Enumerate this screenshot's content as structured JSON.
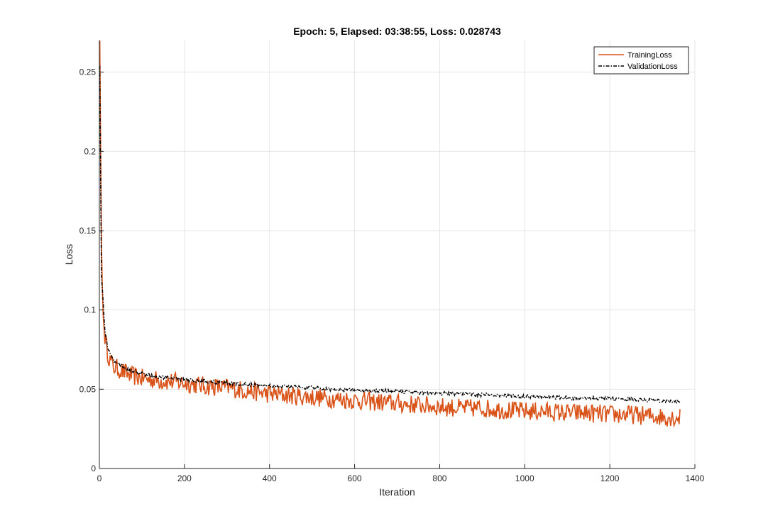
{
  "chart_data": {
    "type": "line",
    "title": "Epoch: 5, Elapsed: 03:38:55, Loss: 0.028743",
    "xlabel": "Iteration",
    "ylabel": "Loss",
    "xlim": [
      0,
      1400
    ],
    "ylim": [
      0,
      0.27
    ],
    "xticks": [
      0,
      200,
      400,
      600,
      800,
      1000,
      1200,
      1400
    ],
    "xtick_labels": [
      "0",
      "200",
      "400",
      "600",
      "800",
      "1000",
      "1200",
      "1400"
    ],
    "yticks": [
      0,
      0.05,
      0.1,
      0.15,
      0.2,
      0.25
    ],
    "ytick_labels": [
      "0",
      "0.05",
      "0.1",
      "0.15",
      "0.2",
      "0.25"
    ],
    "grid": true,
    "legend_position": "top-right",
    "series": [
      {
        "name": "TrainingLoss",
        "color": "#D95319",
        "line_style": "solid",
        "x": [
          1,
          3,
          5,
          8,
          12,
          18,
          25,
          35,
          50,
          70,
          100,
          130,
          160,
          200,
          250,
          300,
          350,
          400,
          450,
          500,
          550,
          600,
          650,
          700,
          750,
          800,
          850,
          900,
          950,
          1000,
          1050,
          1100,
          1150,
          1200,
          1250,
          1300,
          1366
        ],
        "y": [
          0.27,
          0.2,
          0.14,
          0.1,
          0.085,
          0.075,
          0.068,
          0.064,
          0.062,
          0.059,
          0.057,
          0.056,
          0.055,
          0.054,
          0.052,
          0.051,
          0.049,
          0.047,
          0.046,
          0.045,
          0.044,
          0.043,
          0.042,
          0.041,
          0.04,
          0.039,
          0.038,
          0.038,
          0.037,
          0.036,
          0.036,
          0.035,
          0.035,
          0.034,
          0.034,
          0.033,
          0.032
        ],
        "noise_amplitude": 0.006,
        "sample_every": 2
      },
      {
        "name": "ValidationLoss",
        "color": "#000000",
        "line_style": "dash-dot",
        "x": [
          1,
          3,
          5,
          8,
          12,
          18,
          25,
          35,
          50,
          70,
          100,
          130,
          160,
          200,
          250,
          300,
          350,
          400,
          450,
          500,
          550,
          600,
          650,
          700,
          750,
          800,
          850,
          900,
          950,
          1000,
          1050,
          1100,
          1150,
          1200,
          1250,
          1300,
          1366
        ],
        "y": [
          0.254,
          0.18,
          0.12,
          0.11,
          0.09,
          0.078,
          0.072,
          0.068,
          0.065,
          0.062,
          0.06,
          0.058,
          0.057,
          0.056,
          0.055,
          0.054,
          0.053,
          0.052,
          0.0515,
          0.051,
          0.05,
          0.0495,
          0.049,
          0.0485,
          0.048,
          0.0475,
          0.047,
          0.0465,
          0.046,
          0.0455,
          0.045,
          0.0445,
          0.0445,
          0.044,
          0.0435,
          0.043,
          0.042
        ],
        "noise_amplitude": 0.0012,
        "sample_every": 2
      }
    ]
  }
}
